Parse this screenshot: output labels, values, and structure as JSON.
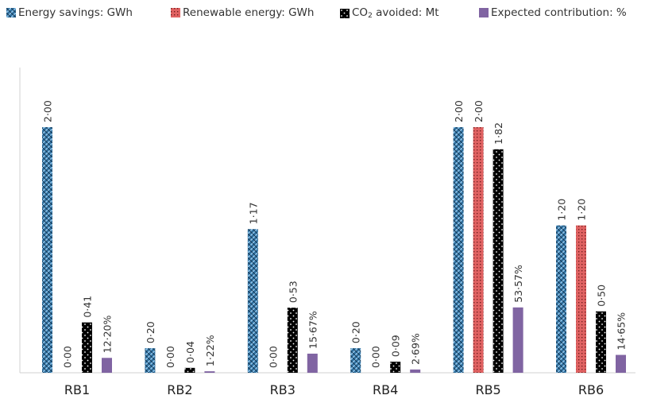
{
  "chart_data": {
    "type": "bar",
    "categories": [
      "RB1",
      "RB2",
      "RB3",
      "RB4",
      "RB5",
      "RB6"
    ],
    "series": [
      {
        "name": "Energy savings: GWh",
        "values": [
          2.0,
          0.2,
          1.17,
          0.2,
          2.0,
          1.2
        ],
        "labels": [
          "2·00",
          "0·20",
          "1·17",
          "0·20",
          "2·00",
          "1·20"
        ],
        "color": "#2e6f9e",
        "pattern": "diagonal-check"
      },
      {
        "name": "Renewable energy: GWh",
        "values": [
          0.0,
          0.0,
          0.0,
          0.0,
          2.0,
          1.2
        ],
        "labels": [
          "0·00",
          "0·00",
          "0·00",
          "0·00",
          "2·00",
          "1·20"
        ],
        "color": "#e06060",
        "pattern": "red-grid"
      },
      {
        "name": "CO2 avoided: Mt",
        "values": [
          0.41,
          0.04,
          0.53,
          0.09,
          1.82,
          0.5
        ],
        "labels": [
          "0·41",
          "0·04",
          "0·53",
          "0·09",
          "1·82",
          "0·50"
        ],
        "color": "#000000",
        "pattern": "black-dots"
      },
      {
        "name": "Expected contribution: %",
        "values": [
          12.2,
          1.22,
          15.67,
          2.69,
          53.57,
          14.65
        ],
        "labels": [
          "12·20%",
          "1·22%",
          "15·67%",
          "2·69%",
          "53·57%",
          "14·65%"
        ],
        "color": "#8064a2",
        "pattern": "solid"
      }
    ],
    "legend": {
      "items": [
        {
          "text": "Energy savings: GWh"
        },
        {
          "text": "Renewable energy: GWh"
        },
        {
          "text_before": "CO",
          "sub": "2",
          "text_after": " avoided: Mt"
        },
        {
          "text": "Expected contribution: %"
        }
      ],
      "position": "top"
    },
    "title": "",
    "xlabel": "",
    "ylabel": "",
    "gridlines": false
  }
}
